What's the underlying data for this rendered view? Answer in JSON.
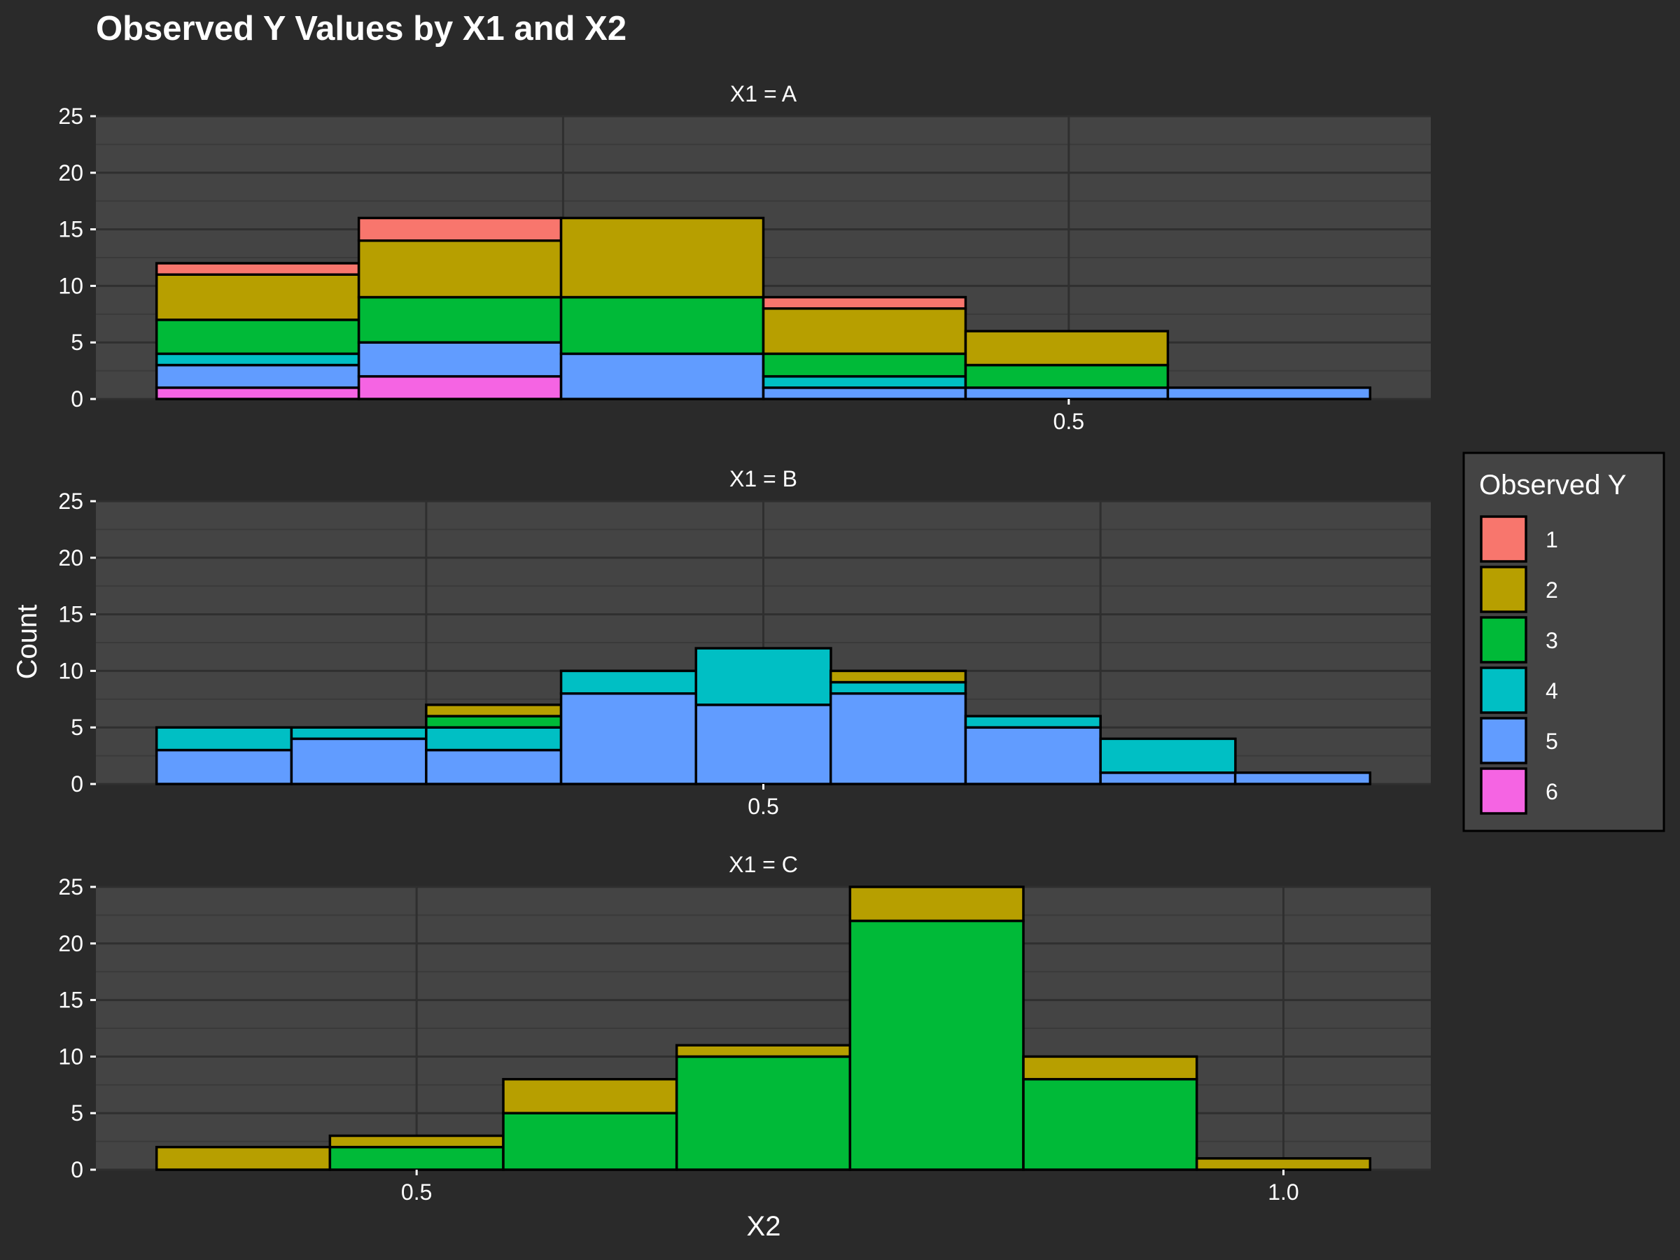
{
  "chart_data": {
    "type": "bar",
    "stacked": true,
    "title": "Observed Y Values by X1 and X2",
    "xlabel": "X2",
    "ylabel": "Count",
    "legend": {
      "title": "Observed Y",
      "placement": "right",
      "entries": [
        {
          "label": "1",
          "color": "#F8766D"
        },
        {
          "label": "2",
          "color": "#B79F00"
        },
        {
          "label": "3",
          "color": "#00BA38"
        },
        {
          "label": "4",
          "color": "#00BFC4"
        },
        {
          "label": "5",
          "color": "#619CFF"
        },
        {
          "label": "6",
          "color": "#F564E3"
        }
      ]
    },
    "ylim": [
      0,
      25
    ],
    "yticks": [
      0,
      5,
      10,
      15,
      20,
      25
    ],
    "grid": true,
    "colors": {
      "background": "#2a2a2a",
      "panel": "#444444",
      "grid_major": "#2f2f2f",
      "grid_minor": "#3a3a3a",
      "bar_outline": "#000000",
      "text": "#ffffff"
    },
    "facets": [
      {
        "label": "X1 = A",
        "xlim": [
          0.019,
          0.679
        ],
        "xticks": [
          {
            "value": 0.5,
            "label": "0.5"
          }
        ],
        "xgrid_major": [
          0.25,
          0.5
        ],
        "bin_width": 0.1,
        "bins": [
          {
            "start": 0.049,
            "counts": {
              "6": 1,
              "5": 2,
              "4": 1,
              "3": 3,
              "2": 4,
              "1": 1
            }
          },
          {
            "start": 0.149,
            "counts": {
              "6": 2,
              "5": 3,
              "3": 4,
              "2": 5,
              "1": 2
            }
          },
          {
            "start": 0.249,
            "counts": {
              "5": 4,
              "3": 5,
              "2": 7
            }
          },
          {
            "start": 0.349,
            "counts": {
              "5": 1,
              "4": 1,
              "3": 2,
              "2": 4,
              "1": 1
            }
          },
          {
            "start": 0.449,
            "counts": {
              "5": 1,
              "3": 2,
              "2": 3
            }
          },
          {
            "start": 0.549,
            "counts": {
              "5": 1
            }
          }
        ]
      },
      {
        "label": "X1 = B",
        "xlim": [
          0.17,
          0.83
        ],
        "xticks": [
          {
            "value": 0.5,
            "label": "0.5"
          }
        ],
        "xgrid_major": [
          0.3333,
          0.5,
          0.6667
        ],
        "bin_width": 0.0667,
        "bins": [
          {
            "start": 0.2,
            "counts": {
              "5": 3,
              "4": 2
            }
          },
          {
            "start": 0.2667,
            "counts": {
              "5": 4,
              "4": 1
            }
          },
          {
            "start": 0.3333,
            "counts": {
              "5": 3,
              "4": 2,
              "3": 1,
              "2": 1
            }
          },
          {
            "start": 0.4,
            "counts": {
              "5": 8,
              "4": 2
            }
          },
          {
            "start": 0.4667,
            "counts": {
              "5": 7,
              "4": 5
            }
          },
          {
            "start": 0.5333,
            "counts": {
              "5": 8,
              "4": 1,
              "2": 1
            }
          },
          {
            "start": 0.6,
            "counts": {
              "5": 5,
              "4": 1
            }
          },
          {
            "start": 0.6667,
            "counts": {
              "5": 1,
              "4": 3
            }
          },
          {
            "start": 0.7333,
            "counts": {
              "5": 1
            }
          }
        ]
      },
      {
        "label": "X1 = C",
        "xlim": [
          0.315,
          1.085
        ],
        "xticks": [
          {
            "value": 0.5,
            "label": "0.5"
          },
          {
            "value": 1.0,
            "label": "1.0"
          }
        ],
        "xgrid_major": [
          0.5,
          1.0
        ],
        "bin_width": 0.1,
        "bins": [
          {
            "start": 0.35,
            "counts": {
              "2": 2
            }
          },
          {
            "start": 0.45,
            "counts": {
              "3": 2,
              "2": 1
            }
          },
          {
            "start": 0.55,
            "counts": {
              "3": 5,
              "2": 3
            }
          },
          {
            "start": 0.65,
            "counts": {
              "3": 10,
              "2": 1
            }
          },
          {
            "start": 0.75,
            "counts": {
              "3": 22,
              "2": 3
            }
          },
          {
            "start": 0.85,
            "counts": {
              "3": 8,
              "2": 2
            }
          },
          {
            "start": 0.95,
            "counts": {
              "2": 1
            }
          }
        ]
      }
    ]
  }
}
